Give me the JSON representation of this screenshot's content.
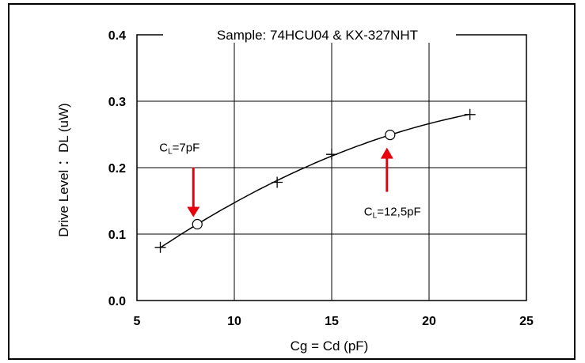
{
  "chart_data": {
    "type": "line",
    "title": "Sample: 74HCU04 & KX-327NHT",
    "xlabel": "Cg = Cd (pF)",
    "ylabel": "Drive Level ：DL (uW)",
    "xlim": [
      5,
      25
    ],
    "ylim": [
      0,
      0.4
    ],
    "xticks": [
      "5",
      "10",
      "15",
      "20",
      "25"
    ],
    "yticks": [
      "0.0",
      "0.1",
      "0.2",
      "0.3",
      "0.4"
    ],
    "grid": true,
    "series": [
      {
        "x": [
          6.2,
          12.2,
          15,
          22.1
        ],
        "y": [
          0.08,
          0.178,
          0.22,
          0.28
        ],
        "marker": "+"
      }
    ],
    "highlight_points": [
      {
        "x": 8.1,
        "y": 0.117,
        "label_main": "C",
        "label_sub": "L",
        "label_rest": "=7pF",
        "arrow": "down"
      },
      {
        "x": 18,
        "y": 0.25,
        "label_main": "C",
        "label_sub": "L",
        "label_rest": "=12,5pF",
        "arrow": "up"
      }
    ],
    "colors": {
      "line": "#000000",
      "arrow": "#e8000d",
      "grid": "#000000"
    }
  }
}
